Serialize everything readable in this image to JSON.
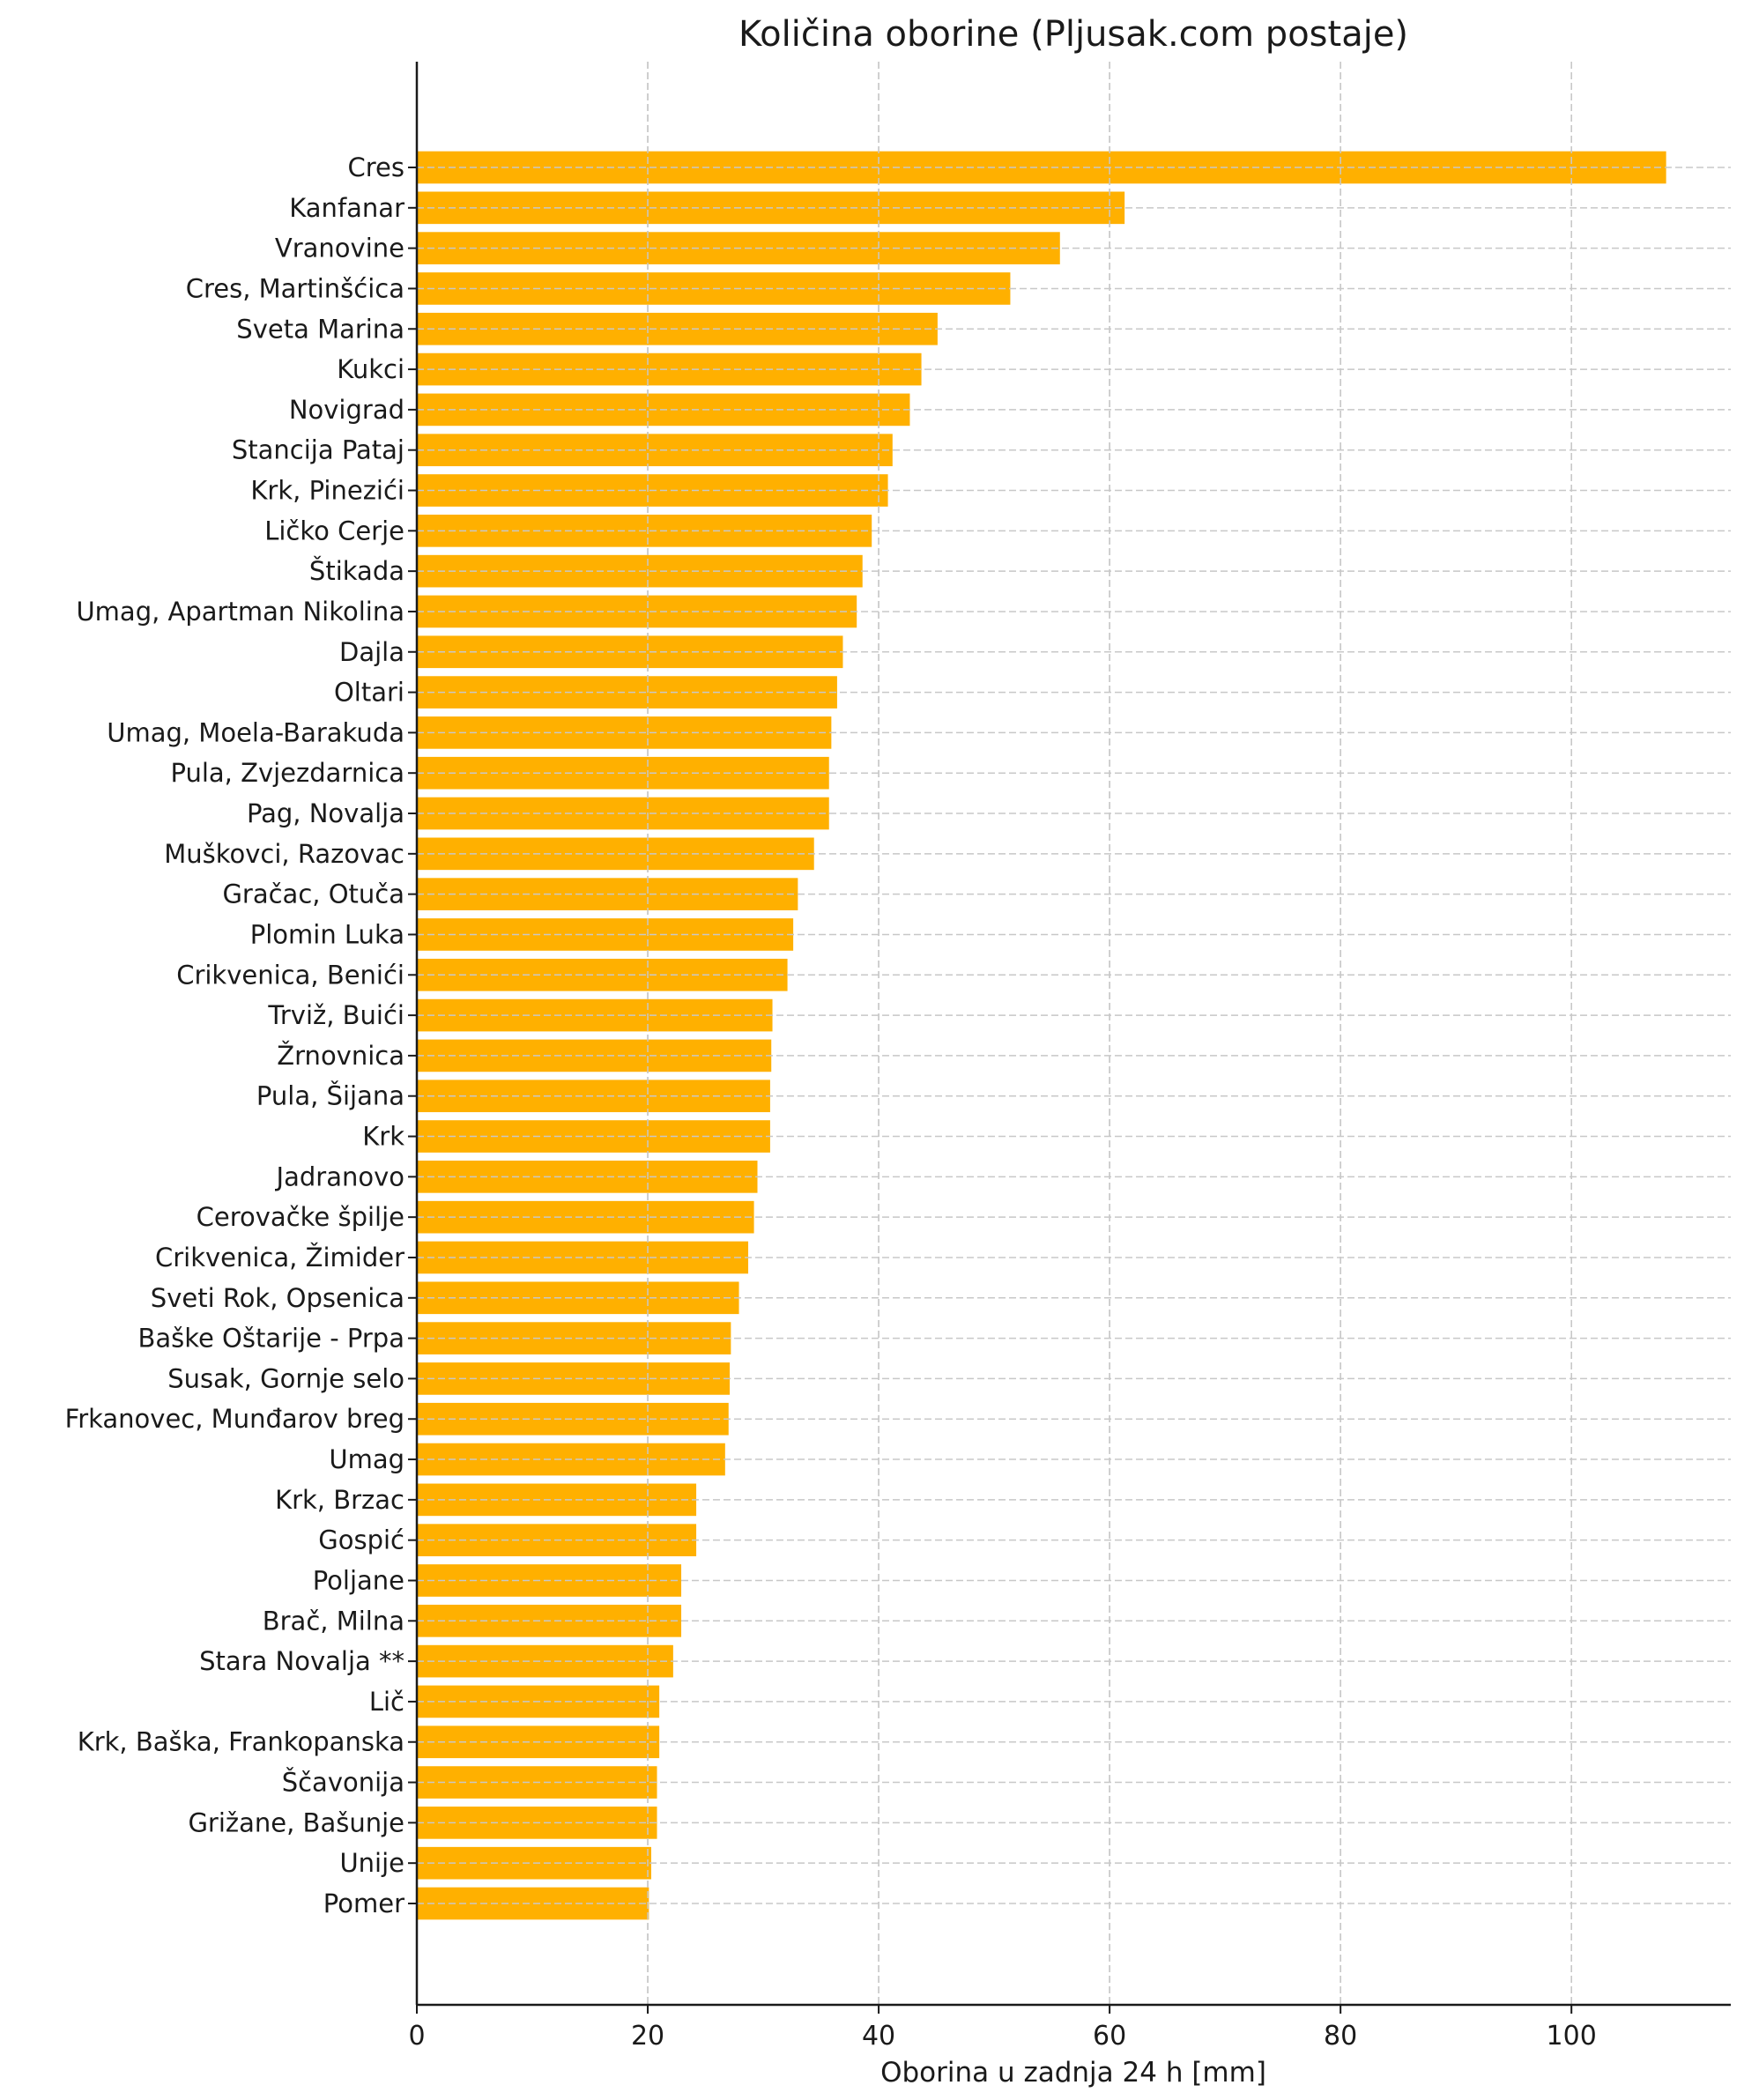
{
  "chart_data": {
    "type": "bar",
    "orientation": "horizontal",
    "title": "Količina oborine (Pljusak.com postaje)",
    "xlabel": "Oborina u zadnja 24 h [mm]",
    "ylabel": "",
    "xlim": [
      0,
      113.8
    ],
    "xticks": [
      0,
      20,
      40,
      60,
      80,
      100
    ],
    "grid": true,
    "bar_color": "#FFB000",
    "categories": [
      "Cres",
      "Kanfanar",
      "Vranovine",
      "Cres, Martinšćica",
      "Sveta Marina",
      "Kukci",
      "Novigrad",
      "Stancija Pataj",
      "Krk, Pinezići",
      "Ličko Cerje",
      "Štikada",
      "Umag, Apartman Nikolina",
      "Dajla",
      "Oltari",
      "Umag, Moela-Barakuda",
      "Pula, Zvjezdarnica",
      "Pag, Novalja",
      "Muškovci, Razovac",
      "Gračac, Otuča",
      "Plomin Luka",
      "Crikvenica, Benići",
      "Trviž, Buići",
      "Žrnovnica",
      "Pula, Šijana",
      "Krk",
      "Jadranovo",
      "Cerovačke špilje",
      "Crikvenica, Žimider",
      "Sveti Rok, Opsenica",
      "Baške Oštarije - Prpa",
      "Susak, Gornje selo",
      "Frkanovec, Munđarov breg",
      "Umag",
      "Krk, Brzac",
      "Gospić",
      "Poljane",
      "Brač, Milna",
      "Stara Novalja **",
      "Lič",
      "Krk, Baška, Frankopanska",
      "Ščavonija",
      "Grižane, Bašunje",
      "Unije",
      "Pomer"
    ],
    "values": [
      108.2,
      61.3,
      55.7,
      51.4,
      45.1,
      43.7,
      42.7,
      41.2,
      40.8,
      39.4,
      38.6,
      38.1,
      36.9,
      36.4,
      35.9,
      35.7,
      35.7,
      34.4,
      33.0,
      32.6,
      32.1,
      30.8,
      30.7,
      30.6,
      30.6,
      29.5,
      29.2,
      28.7,
      27.9,
      27.2,
      27.1,
      27.0,
      26.7,
      24.2,
      24.2,
      22.9,
      22.9,
      22.2,
      21.0,
      21.0,
      20.8,
      20.8,
      20.3,
      20.1
    ]
  }
}
